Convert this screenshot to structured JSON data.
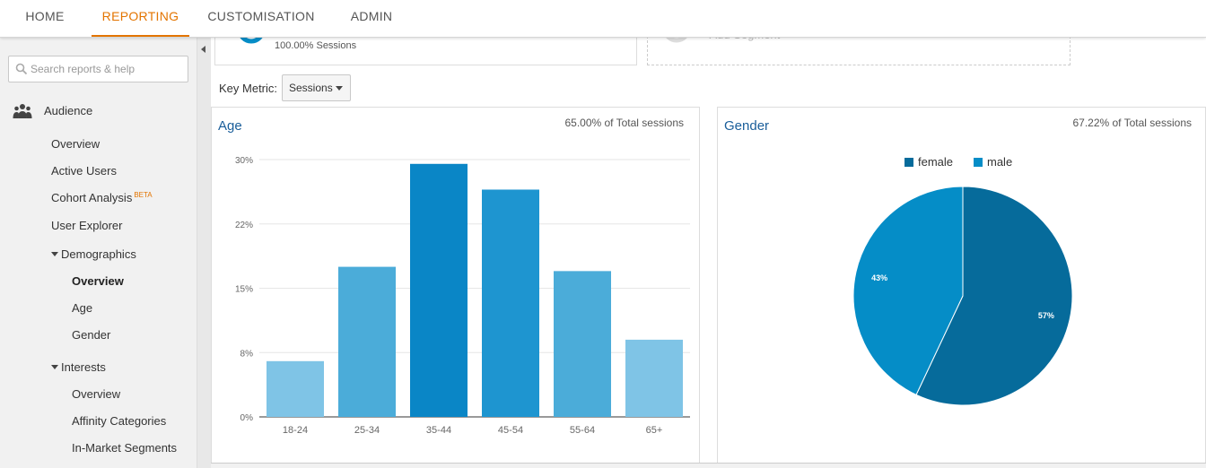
{
  "nav": {
    "tabs": [
      {
        "label": "HOME"
      },
      {
        "label": "REPORTING"
      },
      {
        "label": "CUSTOMISATION"
      },
      {
        "label": "ADMIN"
      }
    ],
    "active_tab": "REPORTING",
    "accent_color": "#e37400"
  },
  "sidebar": {
    "search_placeholder": "Search reports & help",
    "section": "Audience",
    "items": [
      {
        "label": "Overview"
      },
      {
        "label": "Active Users"
      },
      {
        "label": "Cohort Analysis",
        "badge": "BETA"
      },
      {
        "label": "User Explorer"
      },
      {
        "label": "Demographics"
      },
      {
        "label": "Overview"
      },
      {
        "label": "Age"
      },
      {
        "label": "Gender"
      },
      {
        "label": "Interests"
      },
      {
        "label": "Overview"
      },
      {
        "label": "Affinity Categories"
      },
      {
        "label": "In-Market Segments"
      }
    ],
    "selected": "Demographics > Overview"
  },
  "segments": {
    "all_users_pct": "100.00% Sessions",
    "add_segment": "+ Add Segment"
  },
  "key_metric": {
    "label": "Key Metric:",
    "value": "Sessions"
  },
  "age_panel": {
    "title": "Age",
    "total_pct": "65.00% of Total sessions"
  },
  "gender_panel": {
    "title": "Gender",
    "total_pct": "67.22% of Total sessions"
  },
  "chart_data": [
    {
      "type": "bar",
      "title": "Age",
      "categories": [
        "18-24",
        "25-34",
        "35-44",
        "45-54",
        "55-64",
        "65+"
      ],
      "values": [
        6.5,
        17.5,
        29.5,
        26.5,
        17.0,
        9.0
      ],
      "unit": "%",
      "ylim": [
        0,
        30
      ],
      "yticks": [
        "0%",
        "8%",
        "15%",
        "22%",
        "30%"
      ],
      "ytick_values": [
        0,
        7.5,
        15,
        22.5,
        30
      ],
      "grid": true,
      "colors": [
        "#7fc4e6",
        "#4bacd9",
        "#0a86c6",
        "#1e95d0",
        "#4bacd9",
        "#7fc4e6"
      ]
    },
    {
      "type": "pie",
      "title": "Gender",
      "slices": [
        {
          "name": "female",
          "value": 57,
          "label": "57%",
          "color": "#066b9b"
        },
        {
          "name": "male",
          "value": 43,
          "label": "43%",
          "color": "#058dc7"
        }
      ],
      "legend": "top"
    }
  ]
}
